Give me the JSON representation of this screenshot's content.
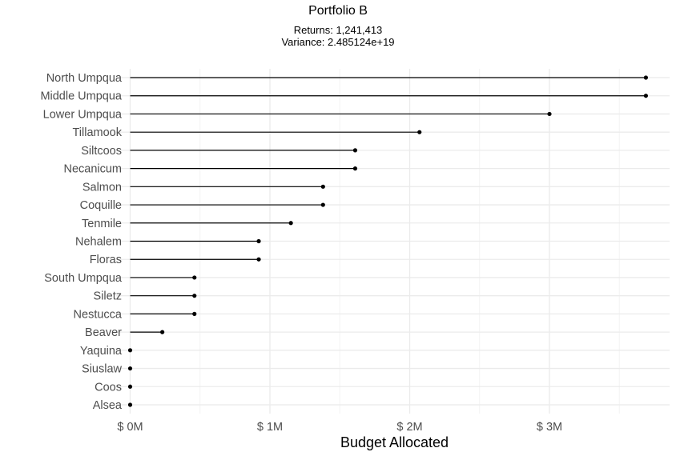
{
  "chart_data": {
    "type": "lollipop",
    "title": "Portfolio B",
    "subtitle_lines": [
      "Returns: 1,241,413",
      "Variance: 2.485124e+19"
    ],
    "xlabel": "Budget Allocated",
    "ylabel": "",
    "xlim": [
      0,
      3800000
    ],
    "x_ticks": [
      0,
      1000000,
      2000000,
      3000000
    ],
    "x_tick_labels": [
      "$ 0M",
      "$ 1M",
      "$ 2M",
      "$ 3M"
    ],
    "grid": true,
    "legend": "none",
    "categories": [
      "North Umpqua",
      "Middle Umpqua",
      "Lower Umpqua",
      "Tillamook",
      "Siltcoos",
      "Necanicum",
      "Salmon",
      "Coquille",
      "Tenmile",
      "Nehalem",
      "Floras",
      "South Umpqua",
      "Siletz",
      "Nestucca",
      "Beaver",
      "Yaquina",
      "Siuslaw",
      "Coos",
      "Alsea"
    ],
    "values": [
      3690000,
      3690000,
      3000000,
      2070000,
      1610000,
      1610000,
      1380000,
      1380000,
      1150000,
      920000,
      920000,
      460000,
      460000,
      460000,
      230000,
      0,
      0,
      0,
      0
    ],
    "colors": {
      "stem": "#000000",
      "point": "#000000",
      "grid_major": "#ebebeb",
      "grid_minor": "#f4f4f4",
      "text": "#000000",
      "tick_text": "#4d4d4d"
    }
  }
}
